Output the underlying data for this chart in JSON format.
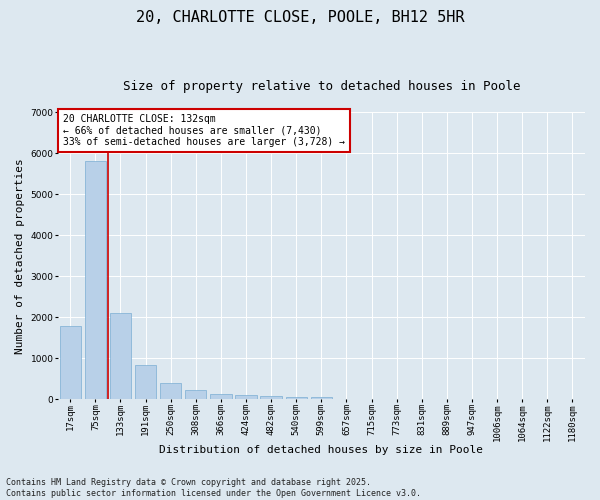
{
  "title": "20, CHARLOTTE CLOSE, POOLE, BH12 5HR",
  "subtitle": "Size of property relative to detached houses in Poole",
  "xlabel": "Distribution of detached houses by size in Poole",
  "ylabel": "Number of detached properties",
  "categories": [
    "17sqm",
    "75sqm",
    "133sqm",
    "191sqm",
    "250sqm",
    "308sqm",
    "366sqm",
    "424sqm",
    "482sqm",
    "540sqm",
    "599sqm",
    "657sqm",
    "715sqm",
    "773sqm",
    "831sqm",
    "889sqm",
    "947sqm",
    "1006sqm",
    "1064sqm",
    "1122sqm",
    "1180sqm"
  ],
  "values": [
    1780,
    5820,
    2100,
    820,
    380,
    210,
    120,
    90,
    65,
    50,
    40,
    0,
    0,
    0,
    0,
    0,
    0,
    0,
    0,
    0,
    0
  ],
  "bar_color": "#b8d0e8",
  "bar_edge_color": "#7aaed4",
  "vline_color": "#cc0000",
  "vline_x_index": 2,
  "annotation_text": "20 CHARLOTTE CLOSE: 132sqm\n← 66% of detached houses are smaller (7,430)\n33% of semi-detached houses are larger (3,728) →",
  "ylim": [
    0,
    7000
  ],
  "yticks": [
    0,
    1000,
    2000,
    3000,
    4000,
    5000,
    6000,
    7000
  ],
  "bg_color": "#dde8f0",
  "plot_bg_color": "#dde8f0",
  "grid_color": "#ffffff",
  "footer": "Contains HM Land Registry data © Crown copyright and database right 2025.\nContains public sector information licensed under the Open Government Licence v3.0.",
  "title_fontsize": 11,
  "subtitle_fontsize": 9,
  "axis_label_fontsize": 8,
  "tick_fontsize": 6.5,
  "footer_fontsize": 6,
  "annotation_fontsize": 7
}
